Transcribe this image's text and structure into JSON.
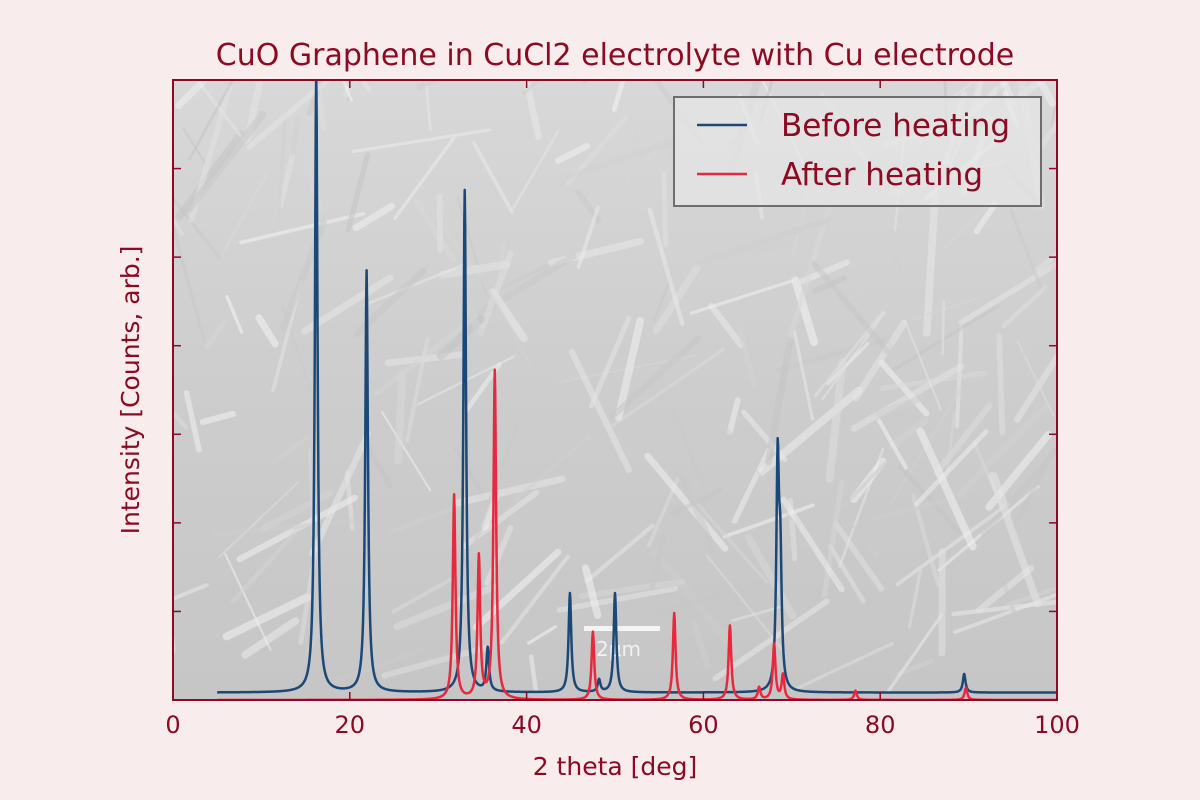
{
  "chart_data": {
    "type": "line",
    "title": "CuO Graphene in CuCl2 electrolyte with Cu electrode",
    "xlabel": "2 theta [deg]",
    "ylabel": "Intensity [Counts, arb.]",
    "xlim": [
      0,
      100
    ],
    "ylim": [
      0,
      1
    ],
    "x_ticks": [
      "0",
      "20",
      "40",
      "60",
      "80",
      "100"
    ],
    "y_tick_labels_shown": false,
    "grid": false,
    "legend_position": "top-right",
    "background_image": "SEM micrograph of needle-like crystals",
    "background_image_label": "2μm",
    "series": [
      {
        "name": "Before heating",
        "color": "#1b4876",
        "x_range": [
          5,
          100
        ],
        "baseline": 0.012,
        "peaks": [
          {
            "x": 16.2,
            "y": 1.0
          },
          {
            "x": 21.9,
            "y": 0.68
          },
          {
            "x": 33.0,
            "y": 0.81
          },
          {
            "x": 35.6,
            "y": 0.07
          },
          {
            "x": 44.9,
            "y": 0.16
          },
          {
            "x": 48.2,
            "y": 0.02
          },
          {
            "x": 50.0,
            "y": 0.16
          },
          {
            "x": 68.4,
            "y": 0.36
          },
          {
            "x": 68.7,
            "y": 0.19
          },
          {
            "x": 89.5,
            "y": 0.03
          }
        ]
      },
      {
        "name": "After heating",
        "color": "#e8283c",
        "x_range": [
          5,
          100
        ],
        "baseline": 0.0,
        "peaks": [
          {
            "x": 31.8,
            "y": 0.33
          },
          {
            "x": 34.6,
            "y": 0.23
          },
          {
            "x": 36.4,
            "y": 0.53
          },
          {
            "x": 47.5,
            "y": 0.11
          },
          {
            "x": 56.7,
            "y": 0.14
          },
          {
            "x": 63.0,
            "y": 0.12
          },
          {
            "x": 66.3,
            "y": 0.02
          },
          {
            "x": 68.0,
            "y": 0.09
          },
          {
            "x": 69.0,
            "y": 0.04
          },
          {
            "x": 77.2,
            "y": 0.015
          },
          {
            "x": 89.7,
            "y": 0.02
          }
        ]
      }
    ]
  }
}
